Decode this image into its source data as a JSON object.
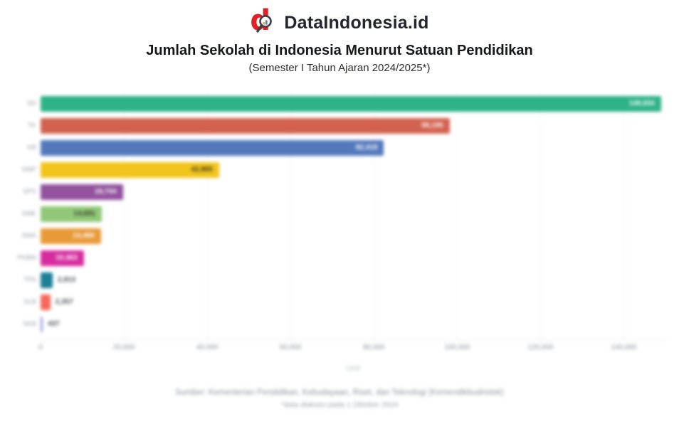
{
  "header": {
    "brand": "DataIndonesia.id",
    "title": "Jumlah Sekolah di Indonesia Menurut Satuan Pendidikan",
    "subtitle": "(Semester I Tahun Ajaran 2024/2025*)"
  },
  "chart_data": {
    "type": "bar",
    "orientation": "horizontal",
    "title": "Jumlah Sekolah di Indonesia Menurut Satuan Pendidikan",
    "subtitle": "(Semester I Tahun Ajaran 2024/2025*)",
    "xlabel": "Unit",
    "ylabel": "",
    "xlim": [
      0,
      150000
    ],
    "grid": "vertical-light",
    "legend": "none",
    "categories": [
      "SD",
      "TK",
      "KB",
      "SMP",
      "SPS",
      "SMK",
      "SMA",
      "PKBM",
      "TPA",
      "SLB",
      "SKB"
    ],
    "values": [
      148934,
      98190,
      82418,
      42865,
      19744,
      14691,
      14466,
      10363,
      2913,
      2357,
      437
    ],
    "value_labels": [
      "148,934",
      "98,190",
      "82,418",
      "42,865",
      "19,744",
      "14,691",
      "14,466",
      "10,363",
      "2,913",
      "2,357",
      "437"
    ],
    "bar_colors": [
      "#2eb287",
      "#d2624f",
      "#5379bc",
      "#f2c51c",
      "#93519e",
      "#90c878",
      "#e99a38",
      "#d62d9e",
      "#1b7f96",
      "#f4695a",
      "#9aa0d6"
    ],
    "value_label_styles": [
      "inside-light",
      "inside-light",
      "inside-light",
      "inside-dark",
      "inside-light",
      "inside-dark",
      "inside-light",
      "inside-light",
      "outside-dark",
      "outside-dark",
      "outside-dark"
    ],
    "xticks": [
      0,
      20000,
      40000,
      60000,
      80000,
      100000,
      120000,
      140000
    ],
    "xtick_labels": [
      "0",
      "20,000",
      "40,000",
      "60,000",
      "80,000",
      "100,000",
      "120,000",
      "140,000"
    ]
  },
  "footer": {
    "source": "Sumber: Kementerian Pendidikan, Kebudayaan, Riset, dan Teknologi (Kemendikbudristek)",
    "note": "*data diakses pada 1 Oktober 2024"
  },
  "colors": {
    "brand_red": "#e01f26",
    "brand_text": "#21262f",
    "axis_text": "#878e98",
    "category_text": "#99a0aa",
    "gridline": "#f1f1f4"
  }
}
